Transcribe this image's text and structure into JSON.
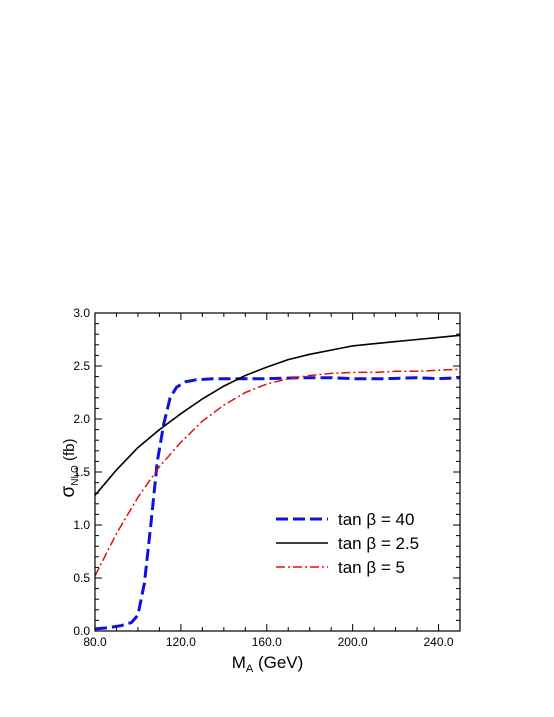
{
  "chart_data": {
    "type": "line",
    "xlabel_main": "M",
    "xlabel_sub": "A",
    "xlabel_unit": " (GeV)",
    "ylabel_main": "σ",
    "ylabel_sub": "NLO",
    "ylabel_unit": " (fb)",
    "xlim": [
      80,
      250
    ],
    "ylim": [
      0,
      3.0
    ],
    "x_ticks": [
      80,
      120,
      160,
      200,
      240
    ],
    "x_tick_labels": [
      "80.0",
      "120.0",
      "160.0",
      "200.0",
      "240.0"
    ],
    "y_ticks": [
      0,
      0.5,
      1.0,
      1.5,
      2.0,
      2.5,
      3.0
    ],
    "y_tick_labels": [
      "0.0",
      "0.5",
      "1.0",
      "1.5",
      "2.0",
      "2.5",
      "3.0"
    ],
    "legend_position": "lower-right",
    "series": [
      {
        "name": "tan β = 40",
        "color": "#1010e0",
        "style": "dashed",
        "x": [
          80,
          86,
          92,
          97,
          100,
          103,
          106,
          109,
          112,
          115,
          118,
          122,
          127,
          135,
          145,
          160,
          175,
          190,
          200,
          215,
          230,
          240,
          250
        ],
        "y": [
          0.02,
          0.03,
          0.05,
          0.08,
          0.15,
          0.45,
          1.0,
          1.6,
          1.95,
          2.2,
          2.3,
          2.35,
          2.37,
          2.38,
          2.38,
          2.38,
          2.39,
          2.39,
          2.38,
          2.38,
          2.39,
          2.38,
          2.39
        ]
      },
      {
        "name": "tan β = 2.5",
        "color": "#000000",
        "style": "solid",
        "x": [
          80,
          90,
          100,
          110,
          120,
          130,
          140,
          150,
          160,
          170,
          180,
          190,
          200,
          210,
          220,
          230,
          240,
          250
        ],
        "y": [
          1.28,
          1.52,
          1.73,
          1.9,
          2.05,
          2.19,
          2.31,
          2.41,
          2.49,
          2.56,
          2.61,
          2.65,
          2.69,
          2.71,
          2.73,
          2.75,
          2.77,
          2.79
        ]
      },
      {
        "name": "tan β = 5",
        "color": "#dd1010",
        "style": "dashdot",
        "x": [
          80,
          90,
          100,
          110,
          120,
          130,
          140,
          150,
          160,
          170,
          180,
          190,
          200,
          210,
          220,
          230,
          240,
          250
        ],
        "y": [
          0.52,
          0.92,
          1.26,
          1.55,
          1.78,
          1.98,
          2.13,
          2.25,
          2.33,
          2.38,
          2.41,
          2.43,
          2.44,
          2.44,
          2.45,
          2.45,
          2.46,
          2.47
        ]
      }
    ]
  }
}
